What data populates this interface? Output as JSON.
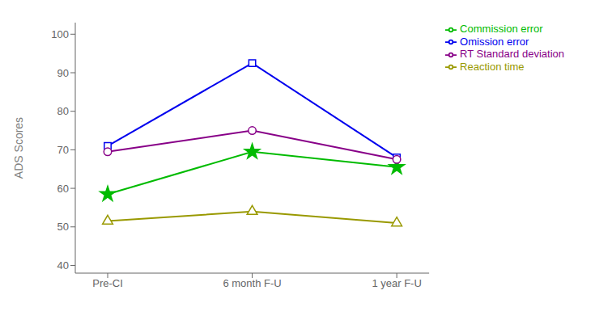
{
  "chart_data": {
    "type": "line",
    "categories": [
      "Pre-CI",
      "6 month F-U",
      "1 year F-U"
    ],
    "series": [
      {
        "name": "Omission error",
        "color": "#0000EE",
        "marker": "square",
        "values": [
          71,
          92.5,
          68
        ]
      },
      {
        "name": "Commission error",
        "color": "#00BB00",
        "marker": "star",
        "values": [
          58.5,
          69.5,
          65.5
        ]
      },
      {
        "name": "Reaction time",
        "color": "#999900",
        "marker": "triangle",
        "values": [
          51.5,
          54,
          51
        ]
      },
      {
        "name": "RT Standard deviation",
        "color": "#880088",
        "marker": "circle",
        "values": [
          69.5,
          75,
          67.5
        ]
      }
    ],
    "ylabel": "ADS Scores",
    "ylim": [
      38,
      103
    ],
    "yticks": [
      40,
      50,
      60,
      70,
      80,
      90,
      100
    ],
    "grid": false,
    "legend": "right"
  }
}
